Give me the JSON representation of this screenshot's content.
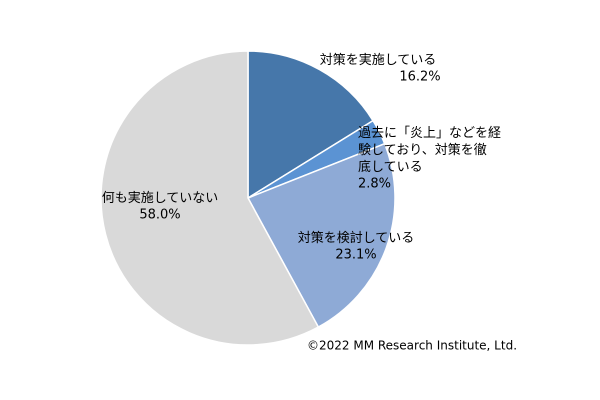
{
  "chart_data": {
    "type": "pie",
    "categories": [
      "対策を実施している",
      "過去に「炎上」などを経験しており、対策を徹底している",
      "対策を検討している",
      "何も実施していない"
    ],
    "values": [
      16.2,
      2.8,
      23.1,
      58.0
    ],
    "value_labels": [
      "16.2%",
      "2.8%",
      "23.1%",
      "58.0%"
    ],
    "colors": [
      "#4677aa",
      "#5b93d3",
      "#8eaad6",
      "#d9d9d9"
    ],
    "annotation": "©2022 MM Research Institute, Ltd."
  }
}
